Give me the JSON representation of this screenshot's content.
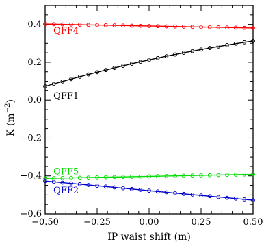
{
  "chart_data": {
    "type": "line",
    "xlabel": "IP waist shift (m)",
    "ylabel": "K (m",
    "ylabel_sup": "−2",
    "ylabel_close": ")",
    "xlim": [
      -0.5,
      0.5
    ],
    "ylim": [
      -0.6,
      0.5
    ],
    "x_ticks": [
      -0.5,
      -0.25,
      0,
      0.25,
      0.5
    ],
    "x_tick_labels": [
      "−0.50",
      "−0.25",
      "0.00",
      "0.25",
      "0.50"
    ],
    "y_ticks": [
      -0.6,
      -0.4,
      -0.2,
      0,
      0.2,
      0.4
    ],
    "y_tick_labels": [
      "−0.6",
      "−0.4",
      "−0.2",
      "0.0",
      "0.2",
      "0.4"
    ],
    "grid": false,
    "series": [
      {
        "name": "QFF4",
        "color": "#ff0000",
        "y_start": 0.402,
        "y_end": 0.381,
        "curve": 0.0
      },
      {
        "name": "QFF1",
        "color": "#000000",
        "y_start": 0.073,
        "y_end": 0.312,
        "curve": -0.02
      },
      {
        "name": "QFF5",
        "color": "#00dd00",
        "y_start": -0.413,
        "y_end": -0.392,
        "curve": 0.0
      },
      {
        "name": "QFF2",
        "color": "#0000cc",
        "y_start": -0.427,
        "y_end": -0.528,
        "curve": 0.0
      }
    ],
    "num_points": 25
  }
}
